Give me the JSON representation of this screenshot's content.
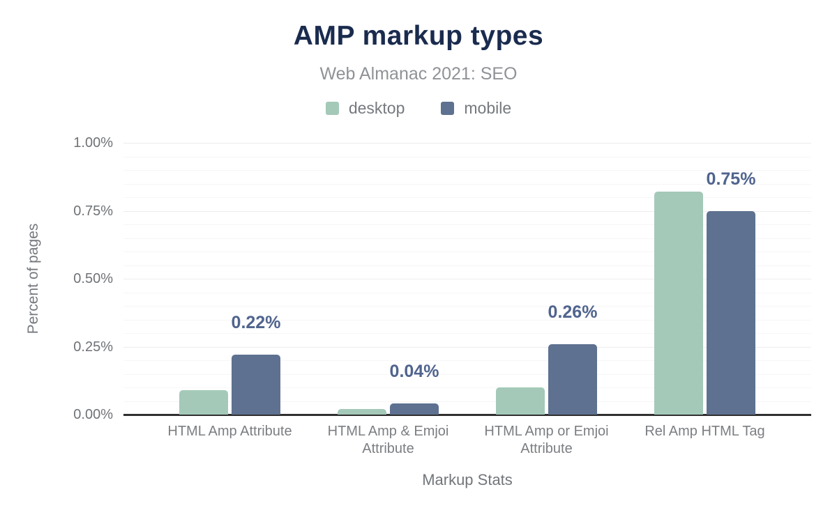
{
  "header": {
    "title": "AMP markup types",
    "subtitle": "Web Almanac 2021: SEO"
  },
  "chart_data": {
    "type": "bar",
    "title": "AMP markup types",
    "subtitle": "Web Almanac 2021: SEO",
    "categories": [
      "HTML Amp Attribute",
      "HTML Amp & Emjoi Attribute",
      "HTML Amp or Emjoi Attribute",
      "Rel Amp HTML Tag"
    ],
    "series": [
      {
        "name": "desktop",
        "color": "#a4c9b8",
        "values": [
          0.09,
          0.02,
          0.1,
          0.82
        ]
      },
      {
        "name": "mobile",
        "color": "#5e7190",
        "values": [
          0.22,
          0.04,
          0.26,
          0.75
        ]
      }
    ],
    "bar_labels": {
      "series_index": 1,
      "values": [
        "0.22%",
        "0.04%",
        "0.26%",
        "0.75%"
      ]
    },
    "xlabel": "Markup Stats",
    "ylabel": "Percent of pages",
    "ylim": [
      0,
      1.0
    ],
    "y_ticks": [
      {
        "value": 0.0,
        "label": "0.00%"
      },
      {
        "value": 0.25,
        "label": "0.25%"
      },
      {
        "value": 0.5,
        "label": "0.50%"
      },
      {
        "value": 0.75,
        "label": "0.75%"
      },
      {
        "value": 1.0,
        "label": "1.00%"
      }
    ],
    "minor_grid_step": 0.05,
    "grid": true,
    "legend_position": "top",
    "value_label_color": "#50648e",
    "axis_line_color": "#2f2f2f",
    "title_color": "#1a2b4e"
  }
}
